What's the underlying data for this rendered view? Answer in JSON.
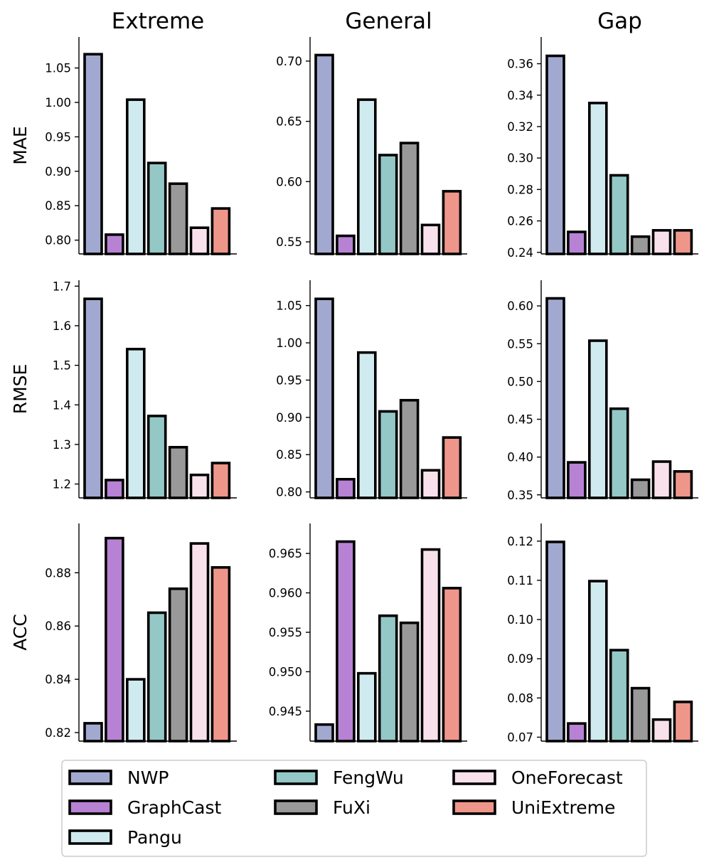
{
  "chart_data": {
    "type": "bar",
    "columns": [
      "Extreme",
      "General",
      "Gap"
    ],
    "rows": [
      "MAE",
      "RMSE",
      "ACC"
    ],
    "models": [
      "NWP",
      "GraphCast",
      "Pangu",
      "FengWu",
      "FuXi",
      "OneForecast",
      "UniExtreme"
    ],
    "colors": [
      "#a2a9d0",
      "#b782d4",
      "#d0ebf0",
      "#94c8c6",
      "#999999",
      "#f9e1ec",
      "#ef968a"
    ],
    "legend_position": "bottom",
    "panels": [
      {
        "row": "MAE",
        "col": "Extreme",
        "ylim": [
          0.78,
          1.095
        ],
        "ticks": [
          0.8,
          0.85,
          0.9,
          0.95,
          1.0,
          1.05
        ],
        "tick_labels": [
          "0.80",
          "0.85",
          "0.90",
          "0.95",
          "1.00",
          "1.05"
        ],
        "values": [
          1.07,
          0.808,
          1.004,
          0.912,
          0.882,
          0.818,
          0.846
        ]
      },
      {
        "row": "MAE",
        "col": "General",
        "ylim": [
          0.54,
          0.72
        ],
        "ticks": [
          0.55,
          0.6,
          0.65,
          0.7
        ],
        "tick_labels": [
          "0.55",
          "0.60",
          "0.65",
          "0.70"
        ],
        "values": [
          0.705,
          0.555,
          0.668,
          0.622,
          0.632,
          0.564,
          0.592
        ]
      },
      {
        "row": "MAE",
        "col": "Gap",
        "ylim": [
          0.239,
          0.377
        ],
        "ticks": [
          0.24,
          0.26,
          0.28,
          0.3,
          0.32,
          0.34,
          0.36
        ],
        "tick_labels": [
          "0.24",
          "0.26",
          "0.28",
          "0.30",
          "0.32",
          "0.34",
          "0.36"
        ],
        "values": [
          0.365,
          0.253,
          0.335,
          0.289,
          0.25,
          0.254,
          0.254
        ]
      },
      {
        "row": "RMSE",
        "col": "Extreme",
        "ylim": [
          1.165,
          1.715
        ],
        "ticks": [
          1.2,
          1.3,
          1.4,
          1.5,
          1.6,
          1.7
        ],
        "tick_labels": [
          "1.2",
          "1.3",
          "1.4",
          "1.5",
          "1.6",
          "1.7"
        ],
        "values": [
          1.668,
          1.21,
          1.541,
          1.372,
          1.293,
          1.223,
          1.253
        ]
      },
      {
        "row": "RMSE",
        "col": "General",
        "ylim": [
          0.792,
          1.084
        ],
        "ticks": [
          0.8,
          0.85,
          0.9,
          0.95,
          1.0,
          1.05
        ],
        "tick_labels": [
          "0.80",
          "0.85",
          "0.90",
          "0.95",
          "1.00",
          "1.05"
        ],
        "values": [
          1.059,
          0.817,
          0.987,
          0.908,
          0.923,
          0.829,
          0.873
        ]
      },
      {
        "row": "RMSE",
        "col": "Gap",
        "ylim": [
          0.346,
          0.634
        ],
        "ticks": [
          0.35,
          0.4,
          0.45,
          0.5,
          0.55,
          0.6
        ],
        "tick_labels": [
          "0.35",
          "0.40",
          "0.45",
          "0.50",
          "0.55",
          "0.60"
        ],
        "values": [
          0.61,
          0.393,
          0.554,
          0.464,
          0.37,
          0.394,
          0.381
        ]
      },
      {
        "row": "ACC",
        "col": "Extreme",
        "ylim": [
          0.8168,
          0.8985
        ],
        "ticks": [
          0.82,
          0.84,
          0.86,
          0.88
        ],
        "tick_labels": [
          "0.82",
          "0.84",
          "0.86",
          "0.88"
        ],
        "values": [
          0.8235,
          0.893,
          0.84,
          0.865,
          0.874,
          0.891,
          0.882
        ]
      },
      {
        "row": "ACC",
        "col": "General",
        "ylim": [
          0.9412,
          0.9688
        ],
        "ticks": [
          0.945,
          0.95,
          0.955,
          0.96,
          0.965
        ],
        "tick_labels": [
          "0.945",
          "0.950",
          "0.955",
          "0.960",
          "0.965"
        ],
        "values": [
          0.9433,
          0.9665,
          0.9498,
          0.9571,
          0.9562,
          0.9655,
          0.9606
        ]
      },
      {
        "row": "ACC",
        "col": "Gap",
        "ylim": [
          0.069,
          0.1245
        ],
        "ticks": [
          0.07,
          0.08,
          0.09,
          0.1,
          0.11,
          0.12
        ],
        "tick_labels": [
          "0.07",
          "0.08",
          "0.09",
          "0.10",
          "0.11",
          "0.12"
        ],
        "values": [
          0.1198,
          0.0735,
          0.1098,
          0.0922,
          0.0825,
          0.0745,
          0.079
        ]
      }
    ]
  }
}
